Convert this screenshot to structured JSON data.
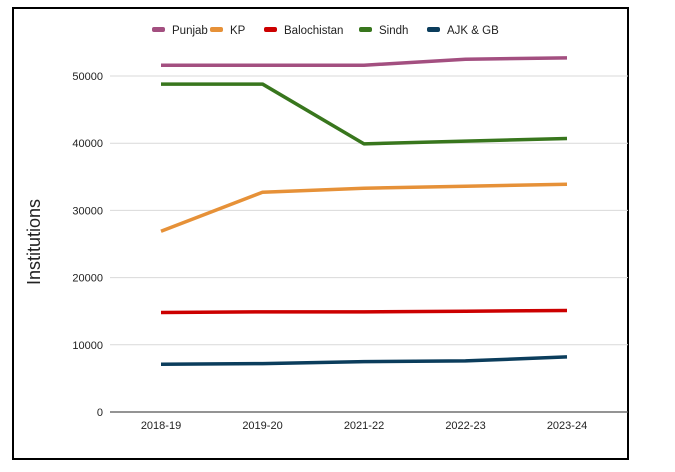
{
  "chart_data": {
    "type": "line",
    "title": "",
    "xlabel": "",
    "ylabel": "Institutions",
    "categories": [
      "2018-19",
      "2019-20",
      "2021-22",
      "2022-23",
      "2023-24"
    ],
    "ylim": [
      0,
      50000
    ],
    "yticks": [
      0,
      10000,
      20000,
      30000,
      40000,
      50000
    ],
    "grid": true,
    "legend": "top",
    "series": [
      {
        "name": "Punjab",
        "color": "#a34f80",
        "values": [
          51600,
          51600,
          51600,
          52500,
          52700
        ]
      },
      {
        "name": "KP",
        "color": "#e69138",
        "values": [
          26900,
          32700,
          33300,
          33600,
          33900
        ]
      },
      {
        "name": "Balochistan",
        "color": "#cc0000",
        "values": [
          14800,
          14900,
          14900,
          15000,
          15100
        ]
      },
      {
        "name": "Sindh",
        "color": "#38761d",
        "values": [
          48800,
          48800,
          39900,
          40300,
          40700
        ]
      },
      {
        "name": "AJK & GB",
        "color": "#0b3d5c",
        "values": [
          7100,
          7200,
          7500,
          7600,
          8200
        ]
      }
    ]
  }
}
